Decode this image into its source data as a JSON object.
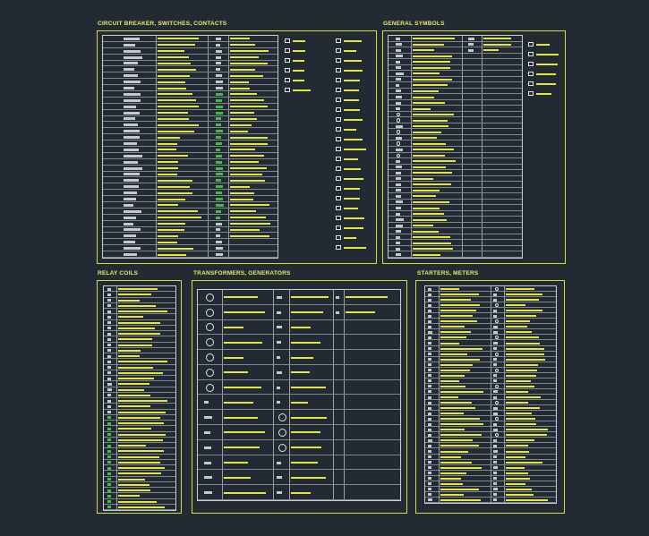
{
  "sections": {
    "circuit": {
      "title": "CIRCUIT BREAKER, SWITCHES, CONTACTS"
    },
    "general": {
      "title": "GENERAL SYMBOLS"
    },
    "relay": {
      "title": "RELAY COILS"
    },
    "transformers": {
      "title": "TRANSFORMERS, GENERATORS"
    },
    "starters": {
      "title": "STARTERS, METERS"
    }
  },
  "colors": {
    "background": "#222b34",
    "frame": "#d9d93a",
    "label": "#e6e63a",
    "symbol": "#e4e4e4",
    "accent": "#4fd14f"
  }
}
